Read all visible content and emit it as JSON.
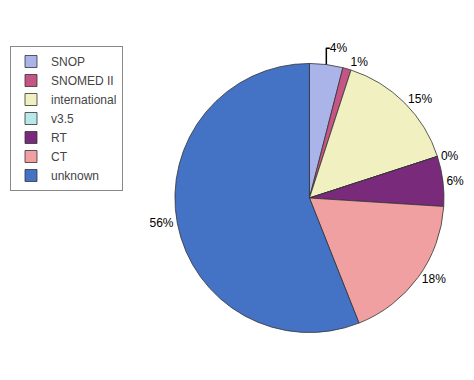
{
  "chart_data": {
    "type": "pie",
    "categories": [
      "SNOP",
      "SNOMED II",
      "international",
      "v3.5",
      "RT",
      "CT",
      "unknown"
    ],
    "values": [
      4,
      1,
      15,
      0,
      6,
      18,
      56
    ],
    "value_labels": [
      "4%",
      "1%",
      "15%",
      "0%",
      "6%",
      "18%",
      "56%"
    ],
    "colors": [
      "#aab4e8",
      "#c45585",
      "#f0f0c0",
      "#b8e8e8",
      "#7a2a7a",
      "#f0a0a0",
      "#4472c4"
    ],
    "data_labels": true,
    "legend": "upper left"
  }
}
